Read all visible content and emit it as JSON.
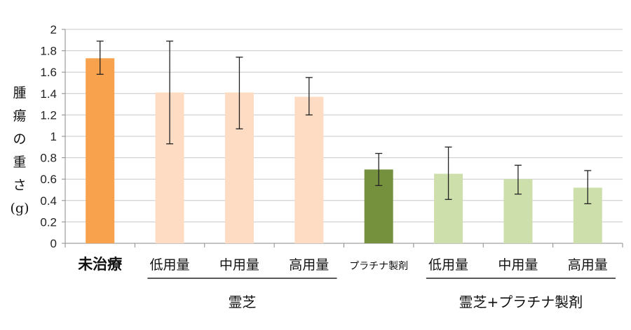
{
  "chart_data": {
    "type": "bar",
    "ylabel": "腫瘍の重さ(g)",
    "ylim": [
      0,
      2
    ],
    "yticks": [
      "0",
      "0.2",
      "0.4",
      "0.6",
      "0.8",
      "1",
      "1.2",
      "1.4",
      "1.6",
      "1.8",
      "2"
    ],
    "grid": true,
    "categories": [
      "未治療",
      "低用量",
      "中用量",
      "高用量",
      "プラチナ製剤",
      "低用量",
      "中用量",
      "高用量"
    ],
    "values": [
      1.73,
      1.41,
      1.41,
      1.37,
      0.69,
      0.65,
      0.6,
      0.52
    ],
    "error_low": [
      1.58,
      0.93,
      1.07,
      1.2,
      0.54,
      0.41,
      0.46,
      0.37
    ],
    "error_high": [
      1.89,
      1.89,
      1.74,
      1.55,
      0.84,
      0.9,
      0.73,
      0.68
    ],
    "bar_colors": [
      "#f8a24e",
      "#fddcc3",
      "#fddcc3",
      "#fddcc3",
      "#76913e",
      "#cddfaa",
      "#cddfaa",
      "#cddfaa"
    ],
    "groups": [
      {
        "label": "霊芝",
        "from": 1,
        "to": 3
      },
      {
        "label": "霊芝+プラチナ製剤",
        "from": 5,
        "to": 7
      }
    ]
  }
}
